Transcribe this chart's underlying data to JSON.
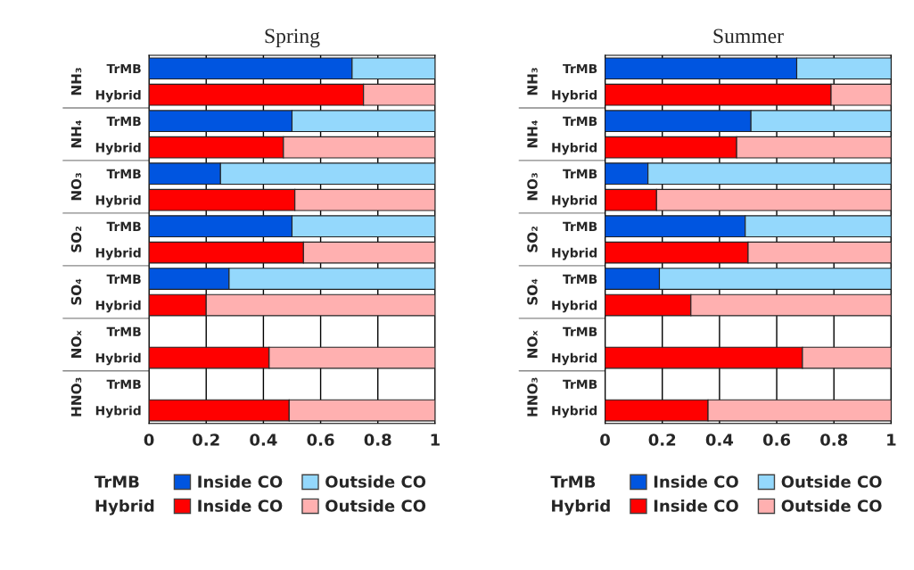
{
  "chart_data": [
    {
      "type": "bar",
      "title": "Spring",
      "orientation": "horizontal",
      "stacked": true,
      "grid": "x",
      "legend": "bottom",
      "categories": [
        "TrMB",
        "Hybrid",
        "TrMB",
        "Hybrid",
        "TrMB",
        "Hybrid",
        "TrMB",
        "Hybrid",
        "TrMB",
        "Hybrid",
        "TrMB",
        "Hybrid",
        "TrMB",
        "Hybrid"
      ],
      "annotations": [
        "NH₃",
        "NH₄",
        "NO₃",
        "SO₂",
        "SO₄",
        "NOₓ",
        "HNO₃"
      ],
      "xlim": [
        0,
        1
      ],
      "xticks": [
        0,
        0.2,
        0.4,
        0.6,
        0.8,
        1
      ],
      "series": [
        {
          "name": "Inside CO",
          "color": "#0055e0",
          "values": [
            0.71,
            null,
            0.5,
            null,
            0.25,
            null,
            0.5,
            null,
            0.28,
            null,
            null,
            null,
            null,
            null
          ]
        },
        {
          "name": "Outside CO",
          "color": "#94d8fc",
          "values": [
            0.29,
            null,
            0.5,
            null,
            0.75,
            null,
            0.5,
            null,
            0.72,
            null,
            null,
            null,
            null,
            null
          ]
        },
        {
          "name": "Inside CO",
          "color": "#ff0000",
          "values": [
            null,
            0.75,
            null,
            0.47,
            null,
            0.51,
            null,
            0.54,
            null,
            0.2,
            null,
            0.42,
            null,
            0.49
          ]
        },
        {
          "name": "Outside CO",
          "color": "#ffb0b0",
          "values": [
            null,
            0.25,
            null,
            0.53,
            null,
            0.49,
            null,
            0.46,
            null,
            0.8,
            null,
            0.58,
            null,
            0.51
          ]
        }
      ]
    },
    {
      "type": "bar",
      "title": "Summer",
      "orientation": "horizontal",
      "stacked": true,
      "grid": "x",
      "legend": "bottom",
      "categories": [
        "TrMB",
        "Hybrid",
        "TrMB",
        "Hybrid",
        "TrMB",
        "Hybrid",
        "TrMB",
        "Hybrid",
        "TrMB",
        "Hybrid",
        "TrMB",
        "Hybrid",
        "TrMB",
        "Hybrid"
      ],
      "annotations": [
        "NH₃",
        "NH₄",
        "NO₃",
        "SO₂",
        "SO₄",
        "NOₓ",
        "HNO₃"
      ],
      "xlim": [
        0,
        1
      ],
      "xticks": [
        0,
        0.2,
        0.4,
        0.6,
        0.8,
        1
      ],
      "series": [
        {
          "name": "Inside CO",
          "color": "#0055e0",
          "values": [
            0.67,
            null,
            0.51,
            null,
            0.15,
            null,
            0.49,
            null,
            0.19,
            null,
            null,
            null,
            null,
            null
          ]
        },
        {
          "name": "Outside CO",
          "color": "#94d8fc",
          "values": [
            0.33,
            null,
            0.49,
            null,
            0.85,
            null,
            0.51,
            null,
            0.81,
            null,
            null,
            null,
            null,
            null
          ]
        },
        {
          "name": "Inside CO",
          "color": "#ff0000",
          "values": [
            null,
            0.79,
            null,
            0.46,
            null,
            0.18,
            null,
            0.5,
            null,
            0.3,
            null,
            0.69,
            null,
            0.36
          ]
        },
        {
          "name": "Outside CO",
          "color": "#ffb0b0",
          "values": [
            null,
            0.21,
            null,
            0.54,
            null,
            0.82,
            null,
            0.5,
            null,
            0.7,
            null,
            0.31,
            null,
            0.64
          ]
        }
      ]
    }
  ]
}
